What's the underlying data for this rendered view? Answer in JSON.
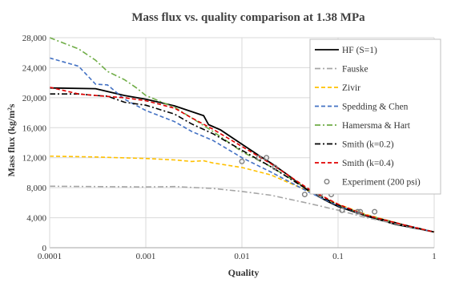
{
  "chart_data": {
    "type": "line",
    "title": "Mass flux vs. quality comparison at 1.38 MPa",
    "xlabel": "Quality",
    "ylabel": "Mass flux (kg/m²s",
    "x_scale": "log",
    "xlim": [
      0.0001,
      1
    ],
    "ylim": [
      0,
      28000
    ],
    "x_ticks": [
      0.0001,
      0.001,
      0.01,
      0.1,
      1
    ],
    "x_tick_labels": [
      "0.0001",
      "0.001",
      "0.01",
      "0.1",
      "1"
    ],
    "y_ticks": [
      0,
      4000,
      8000,
      12000,
      16000,
      20000,
      24000,
      28000
    ],
    "y_tick_labels": [
      "0",
      "4,000",
      "8,000",
      "12,000",
      "16,000",
      "20,000",
      "24,000",
      "28,000"
    ],
    "grid": true,
    "legend_position": "right",
    "series": [
      {
        "name": "HF (S=1)",
        "color": "#000000",
        "dash": "solid",
        "x": [
          0.0001,
          0.0003,
          0.0006,
          0.001,
          0.002,
          0.004,
          0.0045,
          0.006,
          0.01,
          0.015,
          0.02,
          0.03,
          0.05,
          0.08,
          0.1,
          0.2,
          0.4,
          0.7,
          1
        ],
        "y": [
          21300,
          21200,
          20300,
          19800,
          18900,
          17600,
          16400,
          15700,
          13800,
          12300,
          11300,
          9700,
          7500,
          6100,
          5500,
          4200,
          3100,
          2500,
          2100
        ]
      },
      {
        "name": "Fauske",
        "color": "#a6a6a6",
        "dash": "dashdot",
        "x": [
          0.0001,
          0.001,
          0.002,
          0.005,
          0.01,
          0.02,
          0.05,
          0.1,
          0.2,
          0.5,
          1
        ],
        "y": [
          8200,
          8100,
          8150,
          7900,
          7500,
          7000,
          5900,
          5000,
          4000,
          2900,
          2100
        ]
      },
      {
        "name": "Zivir",
        "color": "#ffc000",
        "dash": "dashed",
        "x": [
          0.0001,
          0.0003,
          0.001,
          0.002,
          0.003,
          0.004,
          0.005,
          0.01,
          0.02,
          0.05,
          0.1,
          0.2,
          0.5,
          1
        ],
        "y": [
          12200,
          12100,
          11900,
          11700,
          11500,
          11600,
          11300,
          10700,
          9700,
          7500,
          5800,
          4400,
          3000,
          2100
        ]
      },
      {
        "name": "Spedding & Chen",
        "color": "#4472c4",
        "dash": "dashed",
        "x": [
          0.0001,
          0.0002,
          0.0003,
          0.0004,
          0.0006,
          0.001,
          0.002,
          0.003,
          0.005,
          0.01,
          0.02,
          0.05,
          0.1,
          0.2,
          0.5,
          1
        ],
        "y": [
          25300,
          24200,
          21800,
          21700,
          19800,
          18300,
          16800,
          15500,
          14300,
          12000,
          10100,
          7400,
          5600,
          4300,
          3000,
          2100
        ]
      },
      {
        "name": "Hamersma & Hart",
        "color": "#70ad47",
        "dash": "dashdot",
        "x": [
          0.0001,
          0.0002,
          0.0003,
          0.0004,
          0.0006,
          0.0008,
          0.001,
          0.002,
          0.003,
          0.005,
          0.01,
          0.02,
          0.05,
          0.1,
          0.2,
          0.5,
          1
        ],
        "y": [
          28000,
          26500,
          25000,
          23500,
          22400,
          21300,
          20300,
          18700,
          17300,
          15500,
          12800,
          10800,
          7700,
          5700,
          4300,
          3000,
          2100
        ]
      },
      {
        "name": "Smith (k=0.2)",
        "color": "#000000",
        "dash": "dashdot",
        "x": [
          0.0001,
          0.0002,
          0.0003,
          0.0004,
          0.0006,
          0.001,
          0.002,
          0.003,
          0.005,
          0.01,
          0.02,
          0.05,
          0.1,
          0.2,
          0.5,
          1
        ],
        "y": [
          20500,
          20500,
          20300,
          20200,
          19400,
          19000,
          17800,
          16500,
          15200,
          13000,
          10800,
          7600,
          5700,
          4300,
          3000,
          2100
        ]
      },
      {
        "name": "Smith (k=0.4)",
        "color": "#e00000",
        "dash": "dashed",
        "x": [
          0.0001,
          0.0002,
          0.0003,
          0.0006,
          0.001,
          0.002,
          0.003,
          0.005,
          0.01,
          0.02,
          0.05,
          0.1,
          0.2,
          0.5,
          1
        ],
        "y": [
          21400,
          20500,
          20300,
          20000,
          19600,
          18600,
          17300,
          15800,
          13500,
          11200,
          7800,
          5800,
          4300,
          3000,
          2100
        ]
      },
      {
        "name": "Experiment (200 psi)",
        "color": "#808080",
        "marker": "circle",
        "x": [
          0.01,
          0.015,
          0.018,
          0.022,
          0.045,
          0.065,
          0.085,
          0.11,
          0.16,
          0.17,
          0.24
        ],
        "y": [
          11500,
          12000,
          12000,
          10700,
          7100,
          7100,
          7100,
          5000,
          4800,
          4800,
          4800
        ]
      }
    ]
  }
}
